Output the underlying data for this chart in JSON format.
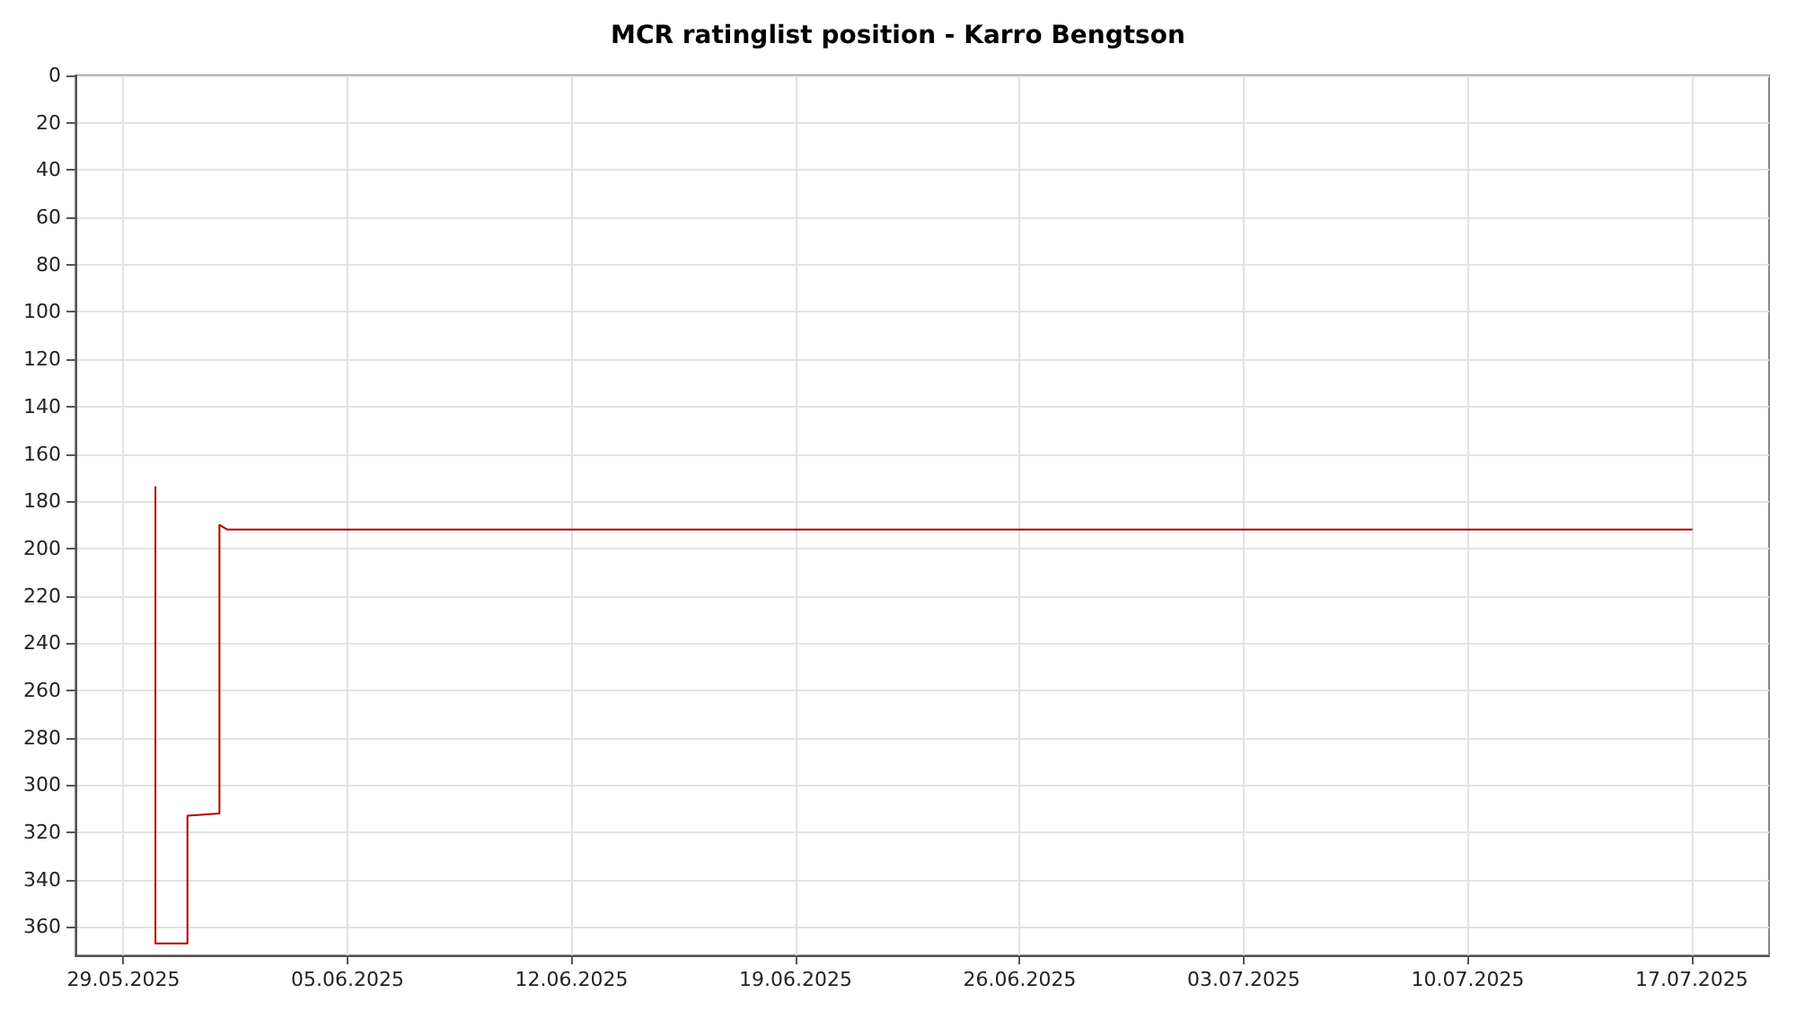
{
  "chart_data": {
    "type": "line",
    "title": "MCR ratinglist position - Karro Bengtson",
    "x": [
      "2025-05-30",
      "2025-05-30",
      "2025-05-30",
      "2025-05-30",
      "2025-05-31",
      "2025-05-31",
      "2025-06-01",
      "2025-06-01",
      "2025-06-01T06:00",
      "2025-07-17"
    ],
    "series": [
      {
        "color": "#b00000",
        "values": [
          174,
          213,
          246,
          367,
          367,
          313,
          312,
          190,
          192,
          192
        ]
      }
    ],
    "xlim": [
      "2025-05-27T12:00",
      "2025-07-19T10:00"
    ],
    "xticks": [
      {
        "value": "2025-05-29",
        "label": "29.05.2025"
      },
      {
        "value": "2025-06-05",
        "label": "05.06.2025"
      },
      {
        "value": "2025-06-12",
        "label": "12.06.2025"
      },
      {
        "value": "2025-06-19",
        "label": "19.06.2025"
      },
      {
        "value": "2025-06-26",
        "label": "26.06.2025"
      },
      {
        "value": "2025-07-03",
        "label": "03.07.2025"
      },
      {
        "value": "2025-07-10",
        "label": "10.07.2025"
      },
      {
        "value": "2025-07-17",
        "label": "17.07.2025"
      }
    ],
    "ylim": [
      372,
      0
    ],
    "yticks": [
      0,
      20,
      40,
      60,
      80,
      100,
      120,
      140,
      160,
      180,
      200,
      220,
      240,
      260,
      280,
      300,
      320,
      340,
      360
    ],
    "grid": true,
    "marker": "none",
    "line_style": "solid"
  }
}
